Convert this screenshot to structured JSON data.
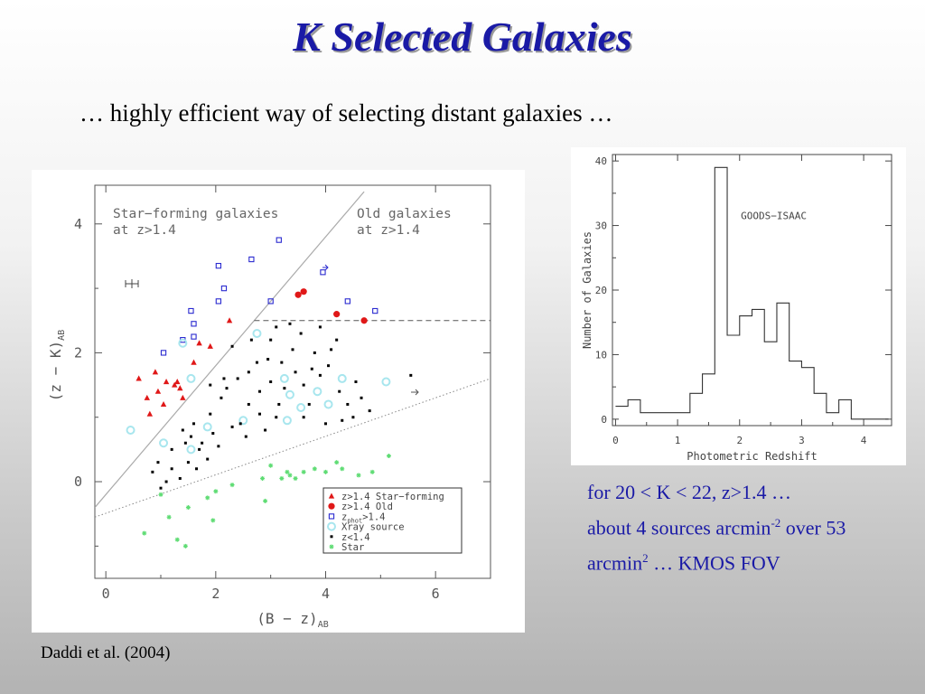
{
  "slide": {
    "title": "K Selected Galaxies",
    "subtitle": "… highly efficient way of  selecting distant galaxies …",
    "citation": "Daddi et al. (2004)",
    "stats": {
      "line1": "for 20 < K < 22, z>1.4 …",
      "line2_a": "about 4 sources arcmin",
      "line2_sup": "-2",
      "line2_b": " over 53",
      "line3_a": "arcmin",
      "line3_sup": "2",
      "line3_b": " … KMOS FOV"
    }
  },
  "chart_data": [
    {
      "type": "scatter",
      "xlabel": "(B − z)",
      "xlabel_sub": "AB",
      "ylabel": "(z − K)",
      "ylabel_sub": "AB",
      "xlim": [
        -0.2,
        7.0
      ],
      "ylim": [
        -1.5,
        4.6
      ],
      "xticks": [
        0,
        2,
        4,
        6
      ],
      "yticks": [
        0,
        2,
        4
      ],
      "region_labels": [
        {
          "line1": "Star−forming galaxies",
          "line2": "at z>1.4"
        },
        {
          "line1": "Old galaxies",
          "line2": "at z>1.4"
        }
      ],
      "lines": {
        "sf_boundary": {
          "x": [
            -0.2,
            4.7
          ],
          "y": [
            -0.4,
            4.5
          ],
          "style": "solid",
          "color": "#aaaaaa"
        },
        "old_boundary": {
          "x": [
            2.7,
            7.0
          ],
          "y": [
            2.5,
            2.5
          ],
          "style": "dashed",
          "color": "#555555"
        },
        "star_boundary": {
          "x": [
            -0.2,
            7.0
          ],
          "y": [
            -0.55,
            1.6
          ],
          "style": "dotted",
          "color": "#888888"
        }
      },
      "colors": {
        "sf": "#e01818",
        "old": "#e01818",
        "zphot": "#2a2ad0",
        "xray": "#a8e6ee",
        "low_z": "#000000",
        "star": "#5fdc74"
      },
      "legend": {
        "placement": "bottom-right",
        "entries": [
          {
            "label": "z>1.4 Star−forming",
            "marker": "triangle",
            "color": "#e01818"
          },
          {
            "label": "z>1.4 Old",
            "marker": "circle",
            "color": "#e01818"
          },
          {
            "label": "z",
            "sub": "phot",
            "label_tail": ">1.4",
            "marker": "square",
            "color": "#2a2ad0"
          },
          {
            "label": "Xray source",
            "marker": "ring",
            "color": "#a8e6ee"
          },
          {
            "label": "z<1.4",
            "marker": "dot",
            "color": "#000000"
          },
          {
            "label": "Star",
            "marker": "star",
            "color": "#5fdc74"
          }
        ]
      },
      "series": [
        {
          "name": "z>1.4 Star−forming",
          "marker": "triangle",
          "points": [
            [
              0.6,
              1.6
            ],
            [
              0.9,
              1.7
            ],
            [
              1.1,
              1.55
            ],
            [
              1.25,
              1.5
            ],
            [
              1.3,
              1.55
            ],
            [
              0.75,
              1.3
            ],
            [
              0.95,
              1.4
            ],
            [
              1.05,
              1.2
            ],
            [
              1.4,
              1.3
            ],
            [
              1.6,
              1.85
            ],
            [
              1.9,
              2.1
            ],
            [
              2.25,
              2.5
            ],
            [
              1.7,
              2.15
            ],
            [
              1.35,
              1.45
            ],
            [
              0.8,
              1.05
            ]
          ]
        },
        {
          "name": "z>1.4 Old",
          "marker": "circle",
          "points": [
            [
              3.5,
              2.9
            ],
            [
              3.6,
              2.95
            ],
            [
              4.2,
              2.6
            ],
            [
              4.7,
              2.5
            ]
          ]
        },
        {
          "name": "zphot>1.4",
          "marker": "square",
          "points": [
            [
              2.05,
              3.35
            ],
            [
              2.15,
              3.0
            ],
            [
              2.65,
              3.45
            ],
            [
              3.15,
              3.75
            ],
            [
              3.95,
              3.25
            ],
            [
              2.05,
              2.8
            ],
            [
              3.0,
              2.8
            ],
            [
              4.4,
              2.8
            ],
            [
              4.9,
              2.65
            ],
            [
              1.55,
              2.65
            ],
            [
              1.6,
              2.45
            ],
            [
              1.6,
              2.25
            ],
            [
              1.05,
              2.0
            ],
            [
              1.4,
              2.2
            ]
          ]
        },
        {
          "name": "Xray source",
          "marker": "ring",
          "points": [
            [
              0.45,
              0.8
            ],
            [
              1.05,
              0.6
            ],
            [
              1.55,
              0.5
            ],
            [
              1.55,
              1.6
            ],
            [
              1.4,
              2.15
            ],
            [
              2.75,
              2.3
            ],
            [
              3.25,
              1.6
            ],
            [
              3.35,
              1.35
            ],
            [
              3.55,
              1.15
            ],
            [
              3.85,
              1.4
            ],
            [
              4.05,
              1.2
            ],
            [
              4.3,
              1.6
            ],
            [
              5.1,
              1.55
            ],
            [
              1.85,
              0.85
            ],
            [
              2.5,
              0.95
            ],
            [
              3.3,
              0.95
            ]
          ]
        },
        {
          "name": "z<1.4",
          "marker": "dot",
          "points": [
            [
              1.2,
              0.5
            ],
            [
              1.6,
              0.9
            ],
            [
              1.7,
              0.5
            ],
            [
              1.75,
              0.6
            ],
            [
              1.2,
              0.2
            ],
            [
              0.85,
              0.15
            ],
            [
              1.5,
              0.3
            ],
            [
              1.4,
              0.8
            ],
            [
              1.55,
              0.7
            ],
            [
              1.95,
              0.75
            ],
            [
              1.9,
              1.05
            ],
            [
              2.1,
              1.3
            ],
            [
              2.2,
              1.45
            ],
            [
              2.4,
              1.6
            ],
            [
              2.6,
              1.2
            ],
            [
              2.45,
              0.9
            ],
            [
              2.8,
              1.05
            ],
            [
              2.6,
              1.7
            ],
            [
              2.95,
              1.9
            ],
            [
              3.0,
              2.2
            ],
            [
              3.2,
              1.85
            ],
            [
              3.4,
              2.05
            ],
            [
              3.45,
              1.7
            ],
            [
              3.6,
              1.5
            ],
            [
              3.8,
              2.0
            ],
            [
              3.9,
              1.65
            ],
            [
              4.05,
              1.8
            ],
            [
              4.25,
              1.4
            ],
            [
              4.4,
              1.2
            ],
            [
              4.5,
              1.0
            ],
            [
              4.65,
              1.3
            ],
            [
              4.8,
              1.1
            ],
            [
              4.2,
              2.2
            ],
            [
              3.9,
              2.4
            ],
            [
              3.55,
              2.3
            ],
            [
              3.1,
              2.4
            ],
            [
              2.8,
              1.4
            ],
            [
              2.9,
              0.8
            ],
            [
              3.1,
              1.0
            ],
            [
              3.25,
              1.45
            ],
            [
              3.6,
              1.0
            ],
            [
              4.0,
              0.9
            ],
            [
              4.3,
              0.95
            ],
            [
              2.3,
              0.85
            ],
            [
              2.05,
              0.55
            ],
            [
              1.85,
              0.35
            ],
            [
              1.65,
              0.2
            ],
            [
              1.35,
              0.05
            ],
            [
              1.0,
              -0.1
            ],
            [
              1.9,
              1.5
            ],
            [
              2.3,
              2.1
            ],
            [
              2.65,
              2.2
            ],
            [
              3.0,
              1.55
            ],
            [
              3.7,
              1.2
            ],
            [
              4.55,
              1.55
            ],
            [
              5.55,
              1.65
            ],
            [
              0.95,
              0.3
            ],
            [
              1.1,
              0.0
            ],
            [
              2.75,
              1.85
            ],
            [
              3.35,
              2.45
            ],
            [
              2.15,
              1.6
            ],
            [
              4.1,
              2.05
            ],
            [
              3.75,
              1.75
            ],
            [
              3.15,
              1.2
            ],
            [
              2.55,
              0.7
            ],
            [
              1.45,
              0.6
            ]
          ]
        },
        {
          "name": "Star",
          "marker": "star",
          "points": [
            [
              1.0,
              -0.2
            ],
            [
              1.5,
              -0.4
            ],
            [
              1.95,
              -0.6
            ],
            [
              1.45,
              -1.0
            ],
            [
              0.7,
              -0.8
            ],
            [
              1.15,
              -0.55
            ],
            [
              2.0,
              -0.15
            ],
            [
              2.3,
              -0.05
            ],
            [
              2.85,
              0.05
            ],
            [
              3.2,
              0.05
            ],
            [
              3.0,
              0.25
            ],
            [
              3.35,
              0.1
            ],
            [
              3.45,
              0.05
            ],
            [
              3.8,
              0.2
            ],
            [
              4.0,
              0.15
            ],
            [
              4.3,
              0.2
            ],
            [
              4.6,
              0.1
            ],
            [
              4.85,
              0.15
            ],
            [
              5.15,
              0.4
            ],
            [
              3.3,
              0.15
            ],
            [
              3.6,
              0.15
            ],
            [
              2.9,
              -0.3
            ],
            [
              1.3,
              -0.9
            ],
            [
              1.85,
              -0.25
            ],
            [
              4.2,
              0.3
            ]
          ]
        }
      ]
    },
    {
      "type": "histogram",
      "annotation": "GOODS−ISAAC",
      "xlabel": "Photometric Redshift",
      "ylabel": "Number of Galaxies",
      "xlim": [
        -0.05,
        4.45
      ],
      "ylim": [
        -1,
        41
      ],
      "xticks": [
        0,
        1,
        2,
        3,
        4
      ],
      "yticks": [
        0,
        10,
        20,
        30,
        40
      ],
      "bin_width": 0.2,
      "bin_start": 0.0,
      "values": [
        2,
        3,
        1,
        1,
        1,
        1,
        4,
        7,
        39,
        13,
        16,
        17,
        12,
        18,
        9,
        8,
        4,
        1,
        3,
        0,
        0,
        0
      ]
    }
  ]
}
